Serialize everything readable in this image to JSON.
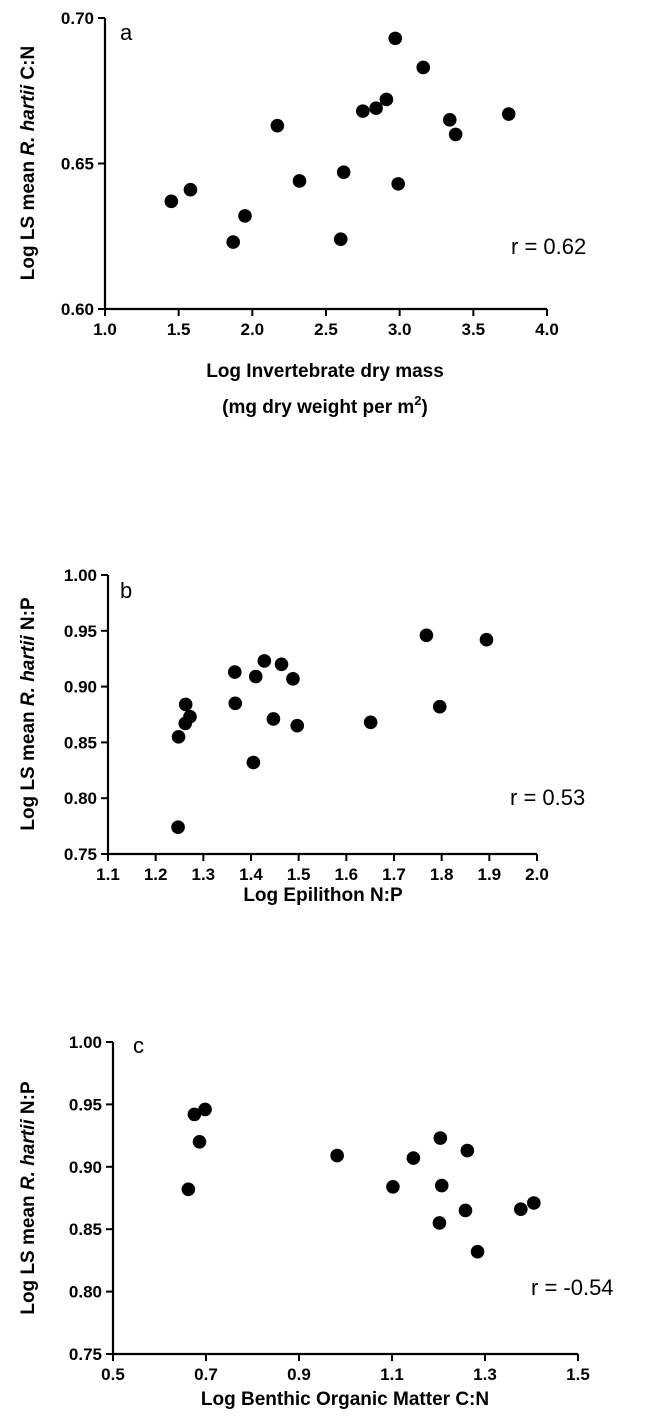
{
  "chart_data": [
    {
      "type": "scatter",
      "panel_label": "a",
      "annotation": "r = 0.62",
      "xlabel": "Log Invertebrate dry mass",
      "xlabel_line2": "(mg dry weight per m",
      "xlabel_sup": "2",
      "xlabel_close": ")",
      "ylabel": "Log LS mean R. hartii C:N",
      "ylabel_pre": "Log LS mean ",
      "ylabel_italic": "R. hartii",
      "ylabel_post": " C:N",
      "xlim": [
        1.0,
        4.0
      ],
      "ylim": [
        0.6,
        0.7
      ],
      "xticks": [
        "1.0",
        "1.5",
        "2.0",
        "2.5",
        "3.0",
        "3.5",
        "4.0"
      ],
      "yticks": [
        "0.60",
        "0.65",
        "0.70"
      ],
      "x": [
        1.45,
        1.58,
        1.87,
        1.95,
        2.17,
        2.32,
        2.6,
        2.62,
        2.75,
        2.84,
        2.91,
        2.97,
        2.99,
        3.16,
        3.34,
        3.38,
        3.74
      ],
      "y": [
        0.637,
        0.641,
        0.623,
        0.632,
        0.663,
        0.644,
        0.624,
        0.647,
        0.668,
        0.669,
        0.672,
        0.693,
        0.643,
        0.683,
        0.665,
        0.66,
        0.667
      ]
    },
    {
      "type": "scatter",
      "panel_label": "b",
      "annotation": "r = 0.53",
      "xlabel": "Log Epilithon N:P",
      "ylabel": "Log LS mean R. hartii N:P",
      "ylabel_pre": "Log LS mean ",
      "ylabel_italic": "R. hartii",
      "ylabel_post": " N:P",
      "xlim": [
        1.1,
        2.0
      ],
      "ylim": [
        0.75,
        1.0
      ],
      "xticks": [
        "1.1",
        "1.2",
        "1.3",
        "1.4",
        "1.5",
        "1.6",
        "1.7",
        "1.8",
        "1.9",
        "2.0"
      ],
      "yticks": [
        "0.75",
        "0.80",
        "0.85",
        "0.90",
        "0.95",
        "1.00"
      ],
      "x": [
        1.247,
        1.248,
        1.262,
        1.263,
        1.272,
        1.366,
        1.367,
        1.405,
        1.41,
        1.428,
        1.447,
        1.464,
        1.488,
        1.497,
        1.651,
        1.768,
        1.796,
        1.894
      ],
      "y": [
        0.774,
        0.855,
        0.867,
        0.884,
        0.873,
        0.913,
        0.885,
        0.832,
        0.909,
        0.923,
        0.871,
        0.92,
        0.907,
        0.865,
        0.868,
        0.946,
        0.882,
        0.942
      ]
    },
    {
      "type": "scatter",
      "panel_label": "c",
      "annotation": "r = -0.54",
      "xlabel": "Log Benthic Organic Matter C:N",
      "ylabel": "Log LS mean R. hartii N:P",
      "ylabel_pre": "Log LS mean ",
      "ylabel_italic": "R. hartii",
      "ylabel_post": " N:P",
      "xlim": [
        0.5,
        1.5
      ],
      "ylim": [
        0.75,
        1.0
      ],
      "xticks": [
        "0.5",
        "0.7",
        "0.9",
        "1.1",
        "1.3",
        "1.5"
      ],
      "yticks": [
        "0.75",
        "0.80",
        "0.85",
        "0.90",
        "0.95",
        "1.00"
      ],
      "x": [
        0.662,
        0.675,
        0.686,
        0.698,
        0.982,
        1.102,
        1.146,
        1.202,
        1.204,
        1.207,
        1.258,
        1.262,
        1.284,
        1.377,
        1.405
      ],
      "y": [
        0.882,
        0.942,
        0.92,
        0.946,
        0.909,
        0.884,
        0.907,
        0.855,
        0.923,
        0.885,
        0.865,
        0.913,
        0.832,
        0.866,
        0.871
      ]
    }
  ]
}
